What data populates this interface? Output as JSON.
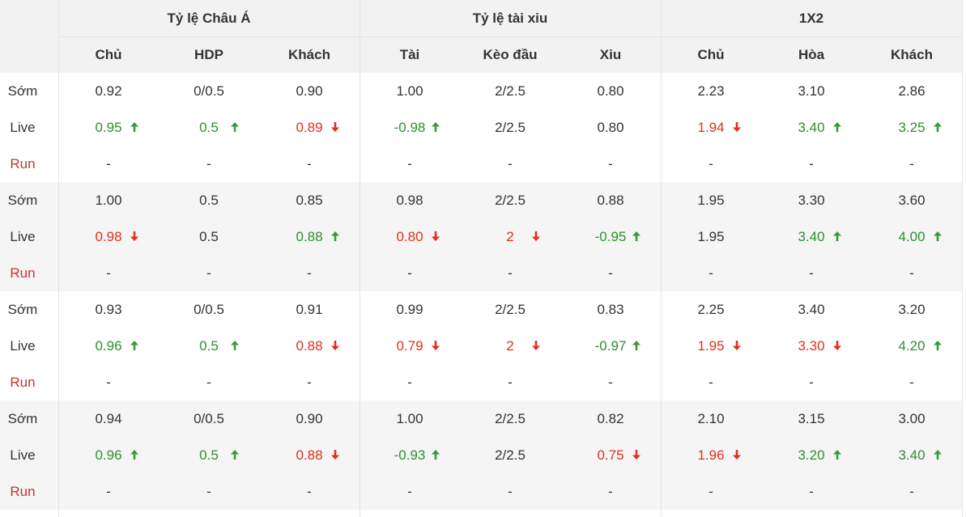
{
  "header": {
    "groups": [
      "Tỷ lệ Châu Á",
      "Tỷ lệ tài xiu",
      "1X2"
    ],
    "columns": [
      "Chủ",
      "HDP",
      "Khách",
      "Tài",
      "Kèo đầu",
      "Xiu",
      "Chủ",
      "Hòa",
      "Khách"
    ]
  },
  "matches": [
    {
      "rows": [
        {
          "label": "Sớm",
          "cells": [
            {
              "text": "0.92"
            },
            {
              "text": "0/0.5"
            },
            {
              "text": "0.90"
            },
            {
              "text": "1.00"
            },
            {
              "text": "2/2.5"
            },
            {
              "text": "0.80"
            },
            {
              "text": "2.23"
            },
            {
              "text": "3.10"
            },
            {
              "text": "2.86"
            }
          ]
        },
        {
          "label": "Live",
          "cells": [
            {
              "text": "0.95",
              "trend": "up"
            },
            {
              "text": "0.5",
              "trend": "up"
            },
            {
              "text": "0.89",
              "trend": "down"
            },
            {
              "text": "-0.98",
              "trend": "up"
            },
            {
              "text": "2/2.5"
            },
            {
              "text": "0.80"
            },
            {
              "text": "1.94",
              "trend": "down"
            },
            {
              "text": "3.40",
              "trend": "up"
            },
            {
              "text": "3.25",
              "trend": "up"
            }
          ]
        },
        {
          "label": "Run",
          "cells": [
            {
              "text": "-"
            },
            {
              "text": "-"
            },
            {
              "text": "-"
            },
            {
              "text": "-"
            },
            {
              "text": "-"
            },
            {
              "text": "-"
            },
            {
              "text": "-"
            },
            {
              "text": "-"
            },
            {
              "text": "-"
            }
          ]
        }
      ]
    },
    {
      "rows": [
        {
          "label": "Sớm",
          "cells": [
            {
              "text": "1.00"
            },
            {
              "text": "0.5"
            },
            {
              "text": "0.85"
            },
            {
              "text": "0.98"
            },
            {
              "text": "2/2.5"
            },
            {
              "text": "0.88"
            },
            {
              "text": "1.95"
            },
            {
              "text": "3.30"
            },
            {
              "text": "3.60"
            }
          ]
        },
        {
          "label": "Live",
          "cells": [
            {
              "text": "0.98",
              "trend": "down"
            },
            {
              "text": "0.5"
            },
            {
              "text": "0.88",
              "trend": "up"
            },
            {
              "text": "0.80",
              "trend": "down"
            },
            {
              "text": "2",
              "trend": "down"
            },
            {
              "text": "-0.95",
              "trend": "up"
            },
            {
              "text": "1.95"
            },
            {
              "text": "3.40",
              "trend": "up"
            },
            {
              "text": "4.00",
              "trend": "up"
            }
          ]
        },
        {
          "label": "Run",
          "cells": [
            {
              "text": "-"
            },
            {
              "text": "-"
            },
            {
              "text": "-"
            },
            {
              "text": "-"
            },
            {
              "text": "-"
            },
            {
              "text": "-"
            },
            {
              "text": "-"
            },
            {
              "text": "-"
            },
            {
              "text": "-"
            }
          ]
        }
      ]
    },
    {
      "rows": [
        {
          "label": "Sớm",
          "cells": [
            {
              "text": "0.93"
            },
            {
              "text": "0/0.5"
            },
            {
              "text": "0.91"
            },
            {
              "text": "0.99"
            },
            {
              "text": "2/2.5"
            },
            {
              "text": "0.83"
            },
            {
              "text": "2.25"
            },
            {
              "text": "3.40"
            },
            {
              "text": "3.20"
            }
          ]
        },
        {
          "label": "Live",
          "cells": [
            {
              "text": "0.96",
              "trend": "up"
            },
            {
              "text": "0.5",
              "trend": "up"
            },
            {
              "text": "0.88",
              "trend": "down"
            },
            {
              "text": "0.79",
              "trend": "down"
            },
            {
              "text": "2",
              "trend": "down"
            },
            {
              "text": "-0.97",
              "trend": "up"
            },
            {
              "text": "1.95",
              "trend": "down"
            },
            {
              "text": "3.30",
              "trend": "down"
            },
            {
              "text": "4.20",
              "trend": "up"
            }
          ]
        },
        {
          "label": "Run",
          "cells": [
            {
              "text": "-"
            },
            {
              "text": "-"
            },
            {
              "text": "-"
            },
            {
              "text": "-"
            },
            {
              "text": "-"
            },
            {
              "text": "-"
            },
            {
              "text": "-"
            },
            {
              "text": "-"
            },
            {
              "text": "-"
            }
          ]
        }
      ]
    },
    {
      "rows": [
        {
          "label": "Sớm",
          "cells": [
            {
              "text": "0.94"
            },
            {
              "text": "0/0.5"
            },
            {
              "text": "0.90"
            },
            {
              "text": "1.00"
            },
            {
              "text": "2/2.5"
            },
            {
              "text": "0.82"
            },
            {
              "text": "2.10"
            },
            {
              "text": "3.15"
            },
            {
              "text": "3.00"
            }
          ]
        },
        {
          "label": "Live",
          "cells": [
            {
              "text": "0.96",
              "trend": "up"
            },
            {
              "text": "0.5",
              "trend": "up"
            },
            {
              "text": "0.88",
              "trend": "down"
            },
            {
              "text": "-0.93",
              "trend": "up"
            },
            {
              "text": "2/2.5"
            },
            {
              "text": "0.75",
              "trend": "down"
            },
            {
              "text": "1.96",
              "trend": "down"
            },
            {
              "text": "3.20",
              "trend": "up"
            },
            {
              "text": "3.40",
              "trend": "up"
            }
          ]
        },
        {
          "label": "Run",
          "cells": [
            {
              "text": "-"
            },
            {
              "text": "-"
            },
            {
              "text": "-"
            },
            {
              "text": "-"
            },
            {
              "text": "-"
            },
            {
              "text": "-"
            },
            {
              "text": "-"
            },
            {
              "text": "-"
            },
            {
              "text": "-"
            }
          ]
        }
      ]
    }
  ]
}
